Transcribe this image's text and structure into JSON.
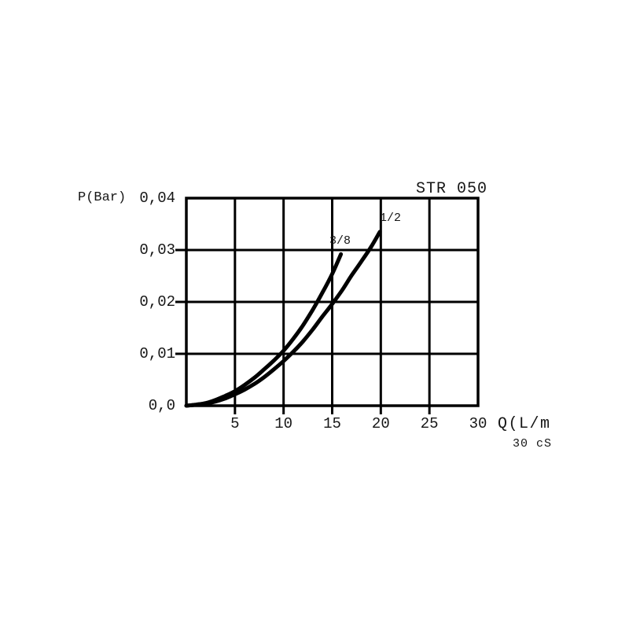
{
  "chart_data": {
    "type": "line",
    "title": "STR 050",
    "ylabel": "P(Bar)",
    "xlabel": "Q(L/m",
    "note": "30 cS",
    "xlim": [
      0,
      30
    ],
    "ylim": [
      0,
      0.04
    ],
    "x_ticks": [
      5,
      10,
      15,
      20,
      25,
      30
    ],
    "x_tick_labels": [
      "5",
      "10",
      "15",
      "20",
      "25",
      "30"
    ],
    "y_ticks": [
      0,
      0.01,
      0.02,
      0.03,
      0.04
    ],
    "y_tick_labels": [
      "0,0",
      "0,01",
      "0,02",
      "0,03",
      "0,04"
    ],
    "grid": true,
    "legend_position": "labels-on-curves",
    "line_color": "#000000",
    "series": [
      {
        "name": "3/8",
        "points": [
          [
            0,
            0
          ],
          [
            1,
            0.0002
          ],
          [
            2,
            0.0005
          ],
          [
            3,
            0.0011
          ],
          [
            4,
            0.0019
          ],
          [
            5,
            0.0028
          ],
          [
            6,
            0.004
          ],
          [
            7,
            0.0054
          ],
          [
            8,
            0.007
          ],
          [
            9,
            0.0087
          ],
          [
            10,
            0.0106
          ],
          [
            11,
            0.0129
          ],
          [
            12,
            0.0155
          ],
          [
            13,
            0.0185
          ],
          [
            14,
            0.0218
          ],
          [
            15,
            0.0254
          ],
          [
            15.9,
            0.0292
          ]
        ]
      },
      {
        "name": "1/2",
        "points": [
          [
            0,
            0
          ],
          [
            1,
            0.0002
          ],
          [
            2,
            0.0004
          ],
          [
            3,
            0.0008
          ],
          [
            4,
            0.0014
          ],
          [
            5,
            0.0022
          ],
          [
            6,
            0.0031
          ],
          [
            7,
            0.0042
          ],
          [
            8,
            0.0055
          ],
          [
            9,
            0.007
          ],
          [
            10,
            0.0086
          ],
          [
            11,
            0.0104
          ],
          [
            12,
            0.0124
          ],
          [
            13,
            0.0147
          ],
          [
            14,
            0.0172
          ],
          [
            15,
            0.0196
          ],
          [
            16,
            0.0222
          ],
          [
            17,
            0.0251
          ],
          [
            18,
            0.0278
          ],
          [
            19,
            0.0306
          ],
          [
            19.9,
            0.0335
          ]
        ]
      }
    ]
  }
}
